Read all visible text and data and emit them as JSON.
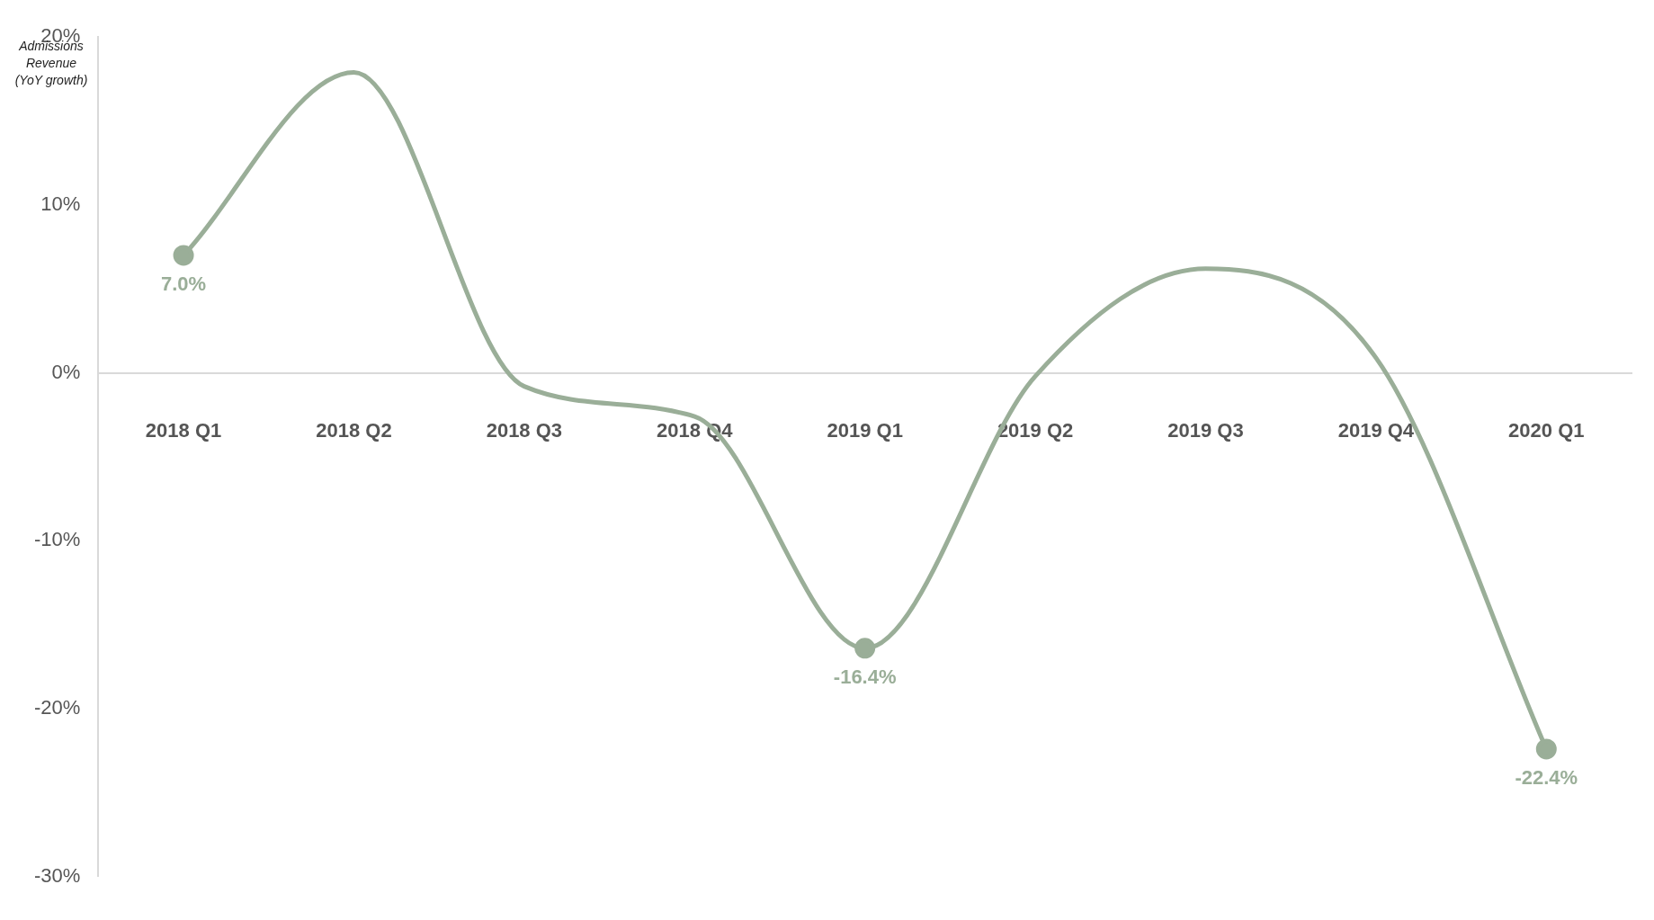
{
  "chart_data": {
    "type": "line",
    "ylabel": "Admissions Revenue (YoY growth)",
    "categories": [
      "2018 Q1",
      "2018 Q2",
      "2018 Q3",
      "2018 Q4",
      "2019 Q1",
      "2019 Q2",
      "2019 Q3",
      "2019 Q4",
      "2020 Q1"
    ],
    "series": [
      {
        "color": "#9aae98",
        "values": [
          7.0,
          17.9,
          -0.8,
          -2.6,
          -16.4,
          -0.2,
          6.2,
          0.9,
          -22.4
        ],
        "value_labels": [
          "7.0%",
          null,
          null,
          null,
          "-16.4%",
          null,
          null,
          null,
          "-22.4%"
        ]
      }
    ],
    "ylim": [
      -30,
      20
    ],
    "yticks": [
      {
        "value": -30,
        "label": "-30%"
      },
      {
        "value": -20,
        "label": "-20%"
      },
      {
        "value": -10,
        "label": "-10%"
      },
      {
        "value": 0,
        "label": "0%"
      },
      {
        "value": 10,
        "label": "10%"
      },
      {
        "value": 20,
        "label": "20%"
      }
    ],
    "grid": false,
    "legend": false
  }
}
